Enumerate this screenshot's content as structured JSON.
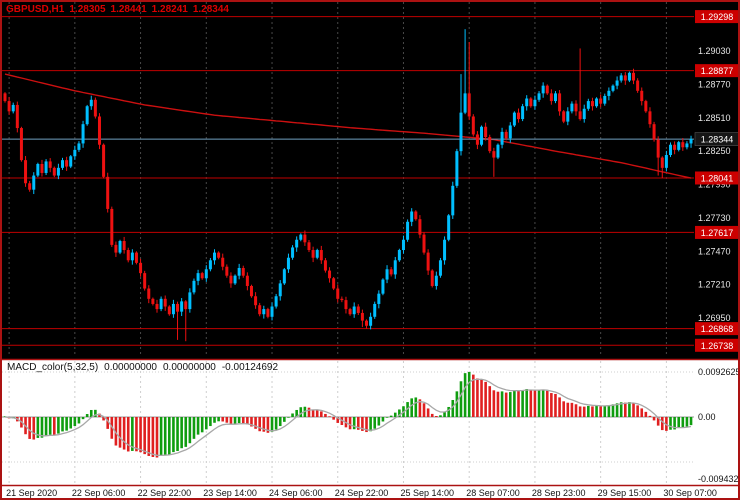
{
  "header": {
    "symbol_period": "GBPUSD,H1",
    "open": "1.28305",
    "high": "1.28441",
    "low": "1.28241",
    "close": "1.28344"
  },
  "colors": {
    "background": "#000000",
    "indicator_bg": "#ffffff",
    "frame": "#ab1212",
    "title": "#dd0000",
    "up": "#00bfff",
    "down": "#ee1111",
    "sr_line": "#c00000",
    "ma_line": "#cc1010",
    "bid_line": "#6f9fc0",
    "tag_bg": "#cc0000",
    "tag_text": "#ffffff",
    "current_tag_bg": "#161616",
    "axis_text": "#e6e6e6",
    "grid_main": "#484848",
    "grid_ind": "#cfcfcf",
    "macd_up": "#0f9d0f",
    "macd_down": "#e02020",
    "macd_signal": "#a8a8a8",
    "ind_text": "#111111"
  },
  "price_axis": {
    "labels": [
      "1.29030",
      "1.28770",
      "1.28510",
      "1.28250",
      "1.27990",
      "1.27730",
      "1.27470",
      "1.27210",
      "1.26950"
    ]
  },
  "time_axis": {
    "labels": [
      "21 Sep 2020",
      "22 Sep 06:00",
      "22 Sep 22:00",
      "23 Sep 14:00",
      "24 Sep 06:00",
      "24 Sep 22:00",
      "25 Sep 14:00",
      "28 Sep 07:00",
      "28 Sep 23:00",
      "29 Sep 15:00",
      "30 Sep 07:00"
    ]
  },
  "macd": {
    "label": "MACD_color(5,32,5)",
    "value1": "0.00000000",
    "value2": "0.00000000",
    "value3": "-0.00124692",
    "axis_top": "0.0092625",
    "axis_zero": "0.00",
    "axis_bottom": "-0.0094325",
    "fast": 5,
    "slow": 32,
    "signal_period": 5
  },
  "chart_data": {
    "type": "candlestick",
    "symbol": "GBPUSD",
    "timeframe": "H1",
    "title": "GBPUSD,H1",
    "ylim": [
      1.2675,
      1.2932
    ],
    "current_price": "1.28344",
    "sr_levels": [
      "1.29298",
      "1.28877",
      "1.28041",
      "1.27617",
      "1.26868",
      "1.26738"
    ],
    "first_open": 1.287,
    "time_first_index": 1,
    "time_labels_every": 16,
    "closes": [
      1.2864,
      1.2856,
      1.2861,
      1.2843,
      1.2818,
      1.28,
      1.2795,
      1.2806,
      1.2815,
      1.2808,
      1.2817,
      1.2812,
      1.2806,
      1.2812,
      1.2818,
      1.2813,
      1.2821,
      1.2826,
      1.2831,
      1.2846,
      1.286,
      1.2865,
      1.2852,
      1.283,
      1.2805,
      1.278,
      1.2752,
      1.2746,
      1.2755,
      1.2748,
      1.274,
      1.2746,
      1.2738,
      1.273,
      1.2718,
      1.271,
      1.2706,
      1.2702,
      1.271,
      1.2704,
      1.2698,
      1.2706,
      1.27,
      1.2708,
      1.2702,
      1.2715,
      1.2724,
      1.273,
      1.2726,
      1.2733,
      1.274,
      1.2746,
      1.2742,
      1.2735,
      1.2728,
      1.2722,
      1.2728,
      1.2734,
      1.2728,
      1.272,
      1.2712,
      1.2705,
      1.2698,
      1.2702,
      1.2696,
      1.2704,
      1.2712,
      1.2722,
      1.2733,
      1.2742,
      1.275,
      1.2756,
      1.276,
      1.2754,
      1.2748,
      1.2742,
      1.2748,
      1.274,
      1.2732,
      1.2726,
      1.2718,
      1.271,
      1.2709,
      1.2702,
      1.2698,
      1.2704,
      1.2699,
      1.2693,
      1.2689,
      1.2696,
      1.2706,
      1.2714,
      1.2725,
      1.2733,
      1.2729,
      1.274,
      1.2748,
      1.2756,
      1.277,
      1.2778,
      1.2772,
      1.276,
      1.2746,
      1.2732,
      1.272,
      1.2728,
      1.274,
      1.2756,
      1.2775,
      1.2798,
      1.2825,
      1.2855,
      1.287,
      1.2852,
      1.2838,
      1.283,
      1.2844,
      1.2836,
      1.2825,
      1.282,
      1.283,
      1.284,
      1.2835,
      1.2845,
      1.2855,
      1.285,
      1.286,
      1.2866,
      1.286,
      1.2865,
      1.287,
      1.2876,
      1.287,
      1.2864,
      1.287,
      1.2856,
      1.2848,
      1.2856,
      1.2862,
      1.2856,
      1.285,
      1.2858,
      1.2864,
      1.286,
      1.2866,
      1.2862,
      1.2868,
      1.2872,
      1.2876,
      1.288,
      1.2884,
      1.288,
      1.2886,
      1.288,
      1.2872,
      1.2864,
      1.2856,
      1.2846,
      1.2834,
      1.282,
      1.2812,
      1.2822,
      1.283,
      1.2826,
      1.2832,
      1.2828,
      1.2831,
      1.28344
    ],
    "wick_overrides": {
      "42": {
        "low": 1.2678
      },
      "44": {
        "low": 1.2677
      },
      "87": {
        "low": 1.2688
      },
      "88": {
        "low": 1.26868
      },
      "111": {
        "high": 1.2885
      },
      "112": {
        "high": 1.292
      },
      "113": {
        "high": 1.291
      },
      "119": {
        "low": 1.2805
      },
      "140": {
        "high": 1.2905
      },
      "159": {
        "low": 1.2806
      },
      "160": {
        "low": 1.28041
      }
    },
    "ma_points": [
      [
        0,
        1.2885
      ],
      [
        17,
        1.2872
      ],
      [
        34,
        1.2861
      ],
      [
        51,
        1.2853
      ],
      [
        68,
        1.2848
      ],
      [
        85,
        1.2843
      ],
      [
        102,
        1.2839
      ],
      [
        119,
        1.2834
      ],
      [
        134,
        1.2825
      ],
      [
        150,
        1.2816
      ],
      [
        167,
        1.2804
      ]
    ]
  }
}
